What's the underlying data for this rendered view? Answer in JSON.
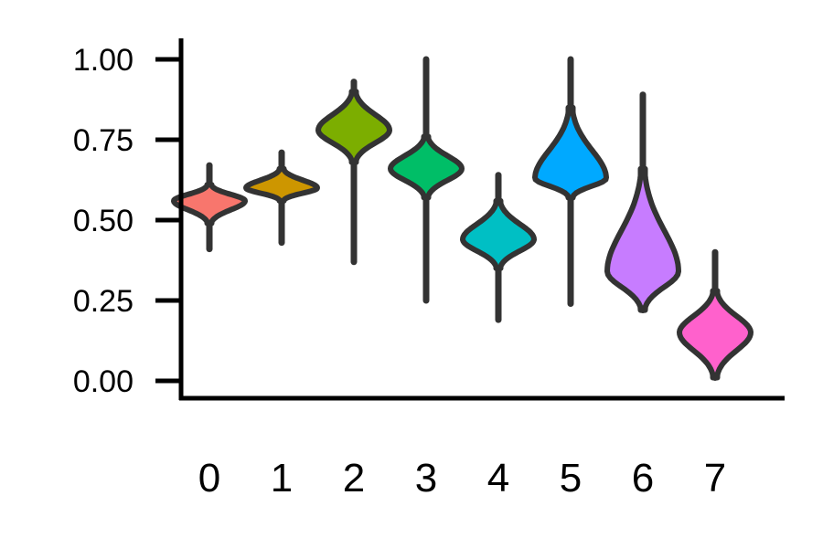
{
  "chart_data": {
    "type": "violin",
    "title": "",
    "xlabel": "",
    "ylabel": "",
    "ylim": [
      -0.05,
      1.05
    ],
    "yticks": [
      "0.00",
      "0.25",
      "0.50",
      "0.75",
      "1.00"
    ],
    "ytick_values": [
      0.0,
      0.25,
      0.5,
      0.75,
      1.0
    ],
    "categories": [
      "0",
      "1",
      "2",
      "3",
      "4",
      "5",
      "6",
      "7"
    ],
    "violins": [
      {
        "category": "0",
        "min": 0.41,
        "max": 0.67,
        "median": 0.56,
        "body_low": 0.49,
        "body_high": 0.61,
        "color": "#F8766D"
      },
      {
        "category": "1",
        "min": 0.43,
        "max": 0.71,
        "median": 0.6,
        "body_low": 0.56,
        "body_high": 0.66,
        "color": "#CD9600"
      },
      {
        "category": "2",
        "min": 0.37,
        "max": 0.93,
        "median": 0.78,
        "body_low": 0.68,
        "body_high": 0.9,
        "color": "#7CAE00"
      },
      {
        "category": "3",
        "min": 0.25,
        "max": 1.0,
        "median": 0.66,
        "body_low": 0.57,
        "body_high": 0.76,
        "color": "#00BE67"
      },
      {
        "category": "4",
        "min": 0.19,
        "max": 0.64,
        "median": 0.44,
        "body_low": 0.35,
        "body_high": 0.56,
        "color": "#00BFC4"
      },
      {
        "category": "5",
        "min": 0.24,
        "max": 1.0,
        "median": 0.63,
        "body_low": 0.57,
        "body_high": 0.85,
        "color": "#00A9FF"
      },
      {
        "category": "6",
        "min": 0.22,
        "max": 0.89,
        "median": 0.34,
        "body_low": 0.22,
        "body_high": 0.66,
        "color": "#C77CFF"
      },
      {
        "category": "7",
        "min": 0.01,
        "max": 0.4,
        "median": 0.15,
        "body_low": 0.01,
        "body_high": 0.28,
        "color": "#FF61CC"
      }
    ]
  }
}
